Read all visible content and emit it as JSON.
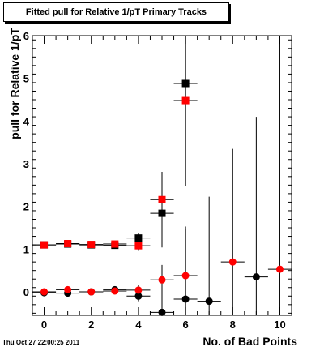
{
  "chart_data": {
    "type": "scatter",
    "title": "Fitted pull for Relative 1/pT Primary Tracks",
    "xlabel": "No. of Bad Points",
    "ylabel": "pull for Relative 1/pT",
    "xlim": [
      -0.5,
      10.5
    ],
    "ylim": [
      -0.55,
      6.0
    ],
    "x_ticks": [
      0,
      2,
      4,
      6,
      8,
      10
    ],
    "y_ticks": [
      0,
      1,
      2,
      3,
      4,
      5,
      6
    ],
    "grid": false,
    "series": [
      {
        "marker": "square",
        "color": "#000000",
        "points": [
          {
            "x": 0,
            "y": 1.1,
            "err": 0.03
          },
          {
            "x": 1,
            "y": 1.12,
            "err": 0.03
          },
          {
            "x": 2,
            "y": 1.1,
            "err": 0.04
          },
          {
            "x": 3,
            "y": 1.09,
            "err": 0.06
          },
          {
            "x": 4,
            "y": 1.26,
            "err": 0.12
          },
          {
            "x": 5,
            "y": 1.84,
            "err": 0.8
          },
          {
            "x": 6,
            "y": 4.88,
            "err": 2.4
          }
        ]
      },
      {
        "marker": "square",
        "color": "#ff0000",
        "points": [
          {
            "x": 0,
            "y": 1.1,
            "err": 0.03
          },
          {
            "x": 1,
            "y": 1.13,
            "err": 0.03
          },
          {
            "x": 2,
            "y": 1.11,
            "err": 0.04
          },
          {
            "x": 3,
            "y": 1.12,
            "err": 0.06
          },
          {
            "x": 4,
            "y": 1.08,
            "err": 0.12
          },
          {
            "x": 5,
            "y": 2.16,
            "err": 0.65
          },
          {
            "x": 6,
            "y": 4.48,
            "err": 2.0
          }
        ]
      },
      {
        "marker": "circle",
        "color": "#000000",
        "points": [
          {
            "x": 0,
            "y": -0.02,
            "err": 0.03
          },
          {
            "x": 1,
            "y": -0.03,
            "err": 0.03
          },
          {
            "x": 2,
            "y": 0.0,
            "err": 0.04
          },
          {
            "x": 3,
            "y": 0.05,
            "err": 0.06
          },
          {
            "x": 4,
            "y": -0.1,
            "err": 0.12
          },
          {
            "x": 5,
            "y": -0.48,
            "err": 0.5
          },
          {
            "x": 6,
            "y": -0.17,
            "err": 1.7
          },
          {
            "x": 7,
            "y": -0.22,
            "err": 2.45
          },
          {
            "x": 9,
            "y": 0.35,
            "err": 3.75
          }
        ]
      },
      {
        "marker": "circle",
        "color": "#ff0000",
        "points": [
          {
            "x": 0,
            "y": 0.0,
            "err": 0.03
          },
          {
            "x": 1,
            "y": 0.05,
            "err": 0.03
          },
          {
            "x": 2,
            "y": 0.0,
            "err": 0.04
          },
          {
            "x": 3,
            "y": 0.02,
            "err": 0.06
          },
          {
            "x": 4,
            "y": 0.04,
            "err": 0.12
          },
          {
            "x": 5,
            "y": 0.28,
            "err": 0.35
          },
          {
            "x": 6,
            "y": 0.38,
            "err": 1.1
          },
          {
            "x": 8,
            "y": 0.7,
            "err": 2.65
          },
          {
            "x": 10,
            "y": 0.53,
            "err": 5.5
          }
        ]
      }
    ]
  },
  "timestamp": "Thu Oct 27 22:00:25 2011"
}
